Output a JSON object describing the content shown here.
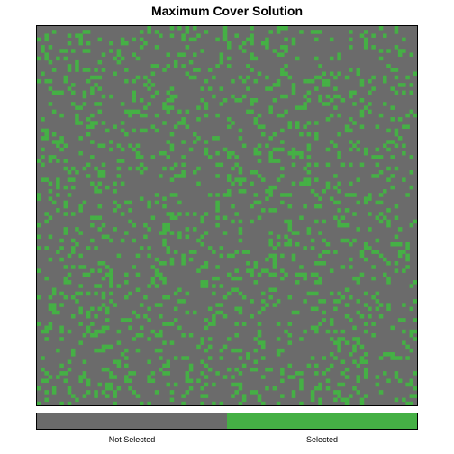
{
  "chart_data": {
    "type": "heatmap",
    "title": "Maximum Cover Solution",
    "xlabel": "",
    "ylabel": "",
    "grid": false,
    "legend_position": "bottom",
    "colors": {
      "not_selected": "#6b6b6b",
      "selected": "#45b045",
      "border": "#000000",
      "background": "#ffffff"
    },
    "legend": [
      {
        "label": "Not Selected",
        "value": 0,
        "color": "#6b6b6b"
      },
      {
        "label": "Selected",
        "value": 1,
        "color": "#45b045"
      }
    ],
    "grid_size": [
      100,
      100
    ],
    "selected_fraction": 0.16,
    "random_seed": 20240517
  }
}
